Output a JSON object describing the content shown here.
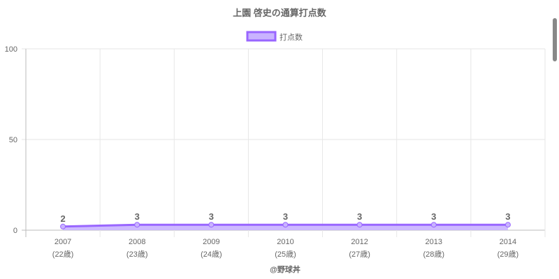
{
  "chart_data": {
    "type": "line",
    "title": "上園 啓史の通算打点数",
    "categories": [
      "2007",
      "2008",
      "2009",
      "2010",
      "2012",
      "2013",
      "2014"
    ],
    "sublabels": [
      "(22歳)",
      "(23歳)",
      "(24歳)",
      "(25歳)",
      "(27歳)",
      "(28歳)",
      "(29歳)"
    ],
    "series": [
      {
        "name": "打点数",
        "values": [
          2,
          3,
          3,
          3,
          3,
          3,
          3
        ]
      }
    ],
    "ylim": [
      0,
      100
    ],
    "yticks": [
      0,
      50,
      100
    ],
    "grid": true,
    "legend": "top",
    "filled": true,
    "colors": {
      "line": "#9966ff",
      "fill": "#c9b3ff"
    },
    "footer": "@野球丼"
  }
}
